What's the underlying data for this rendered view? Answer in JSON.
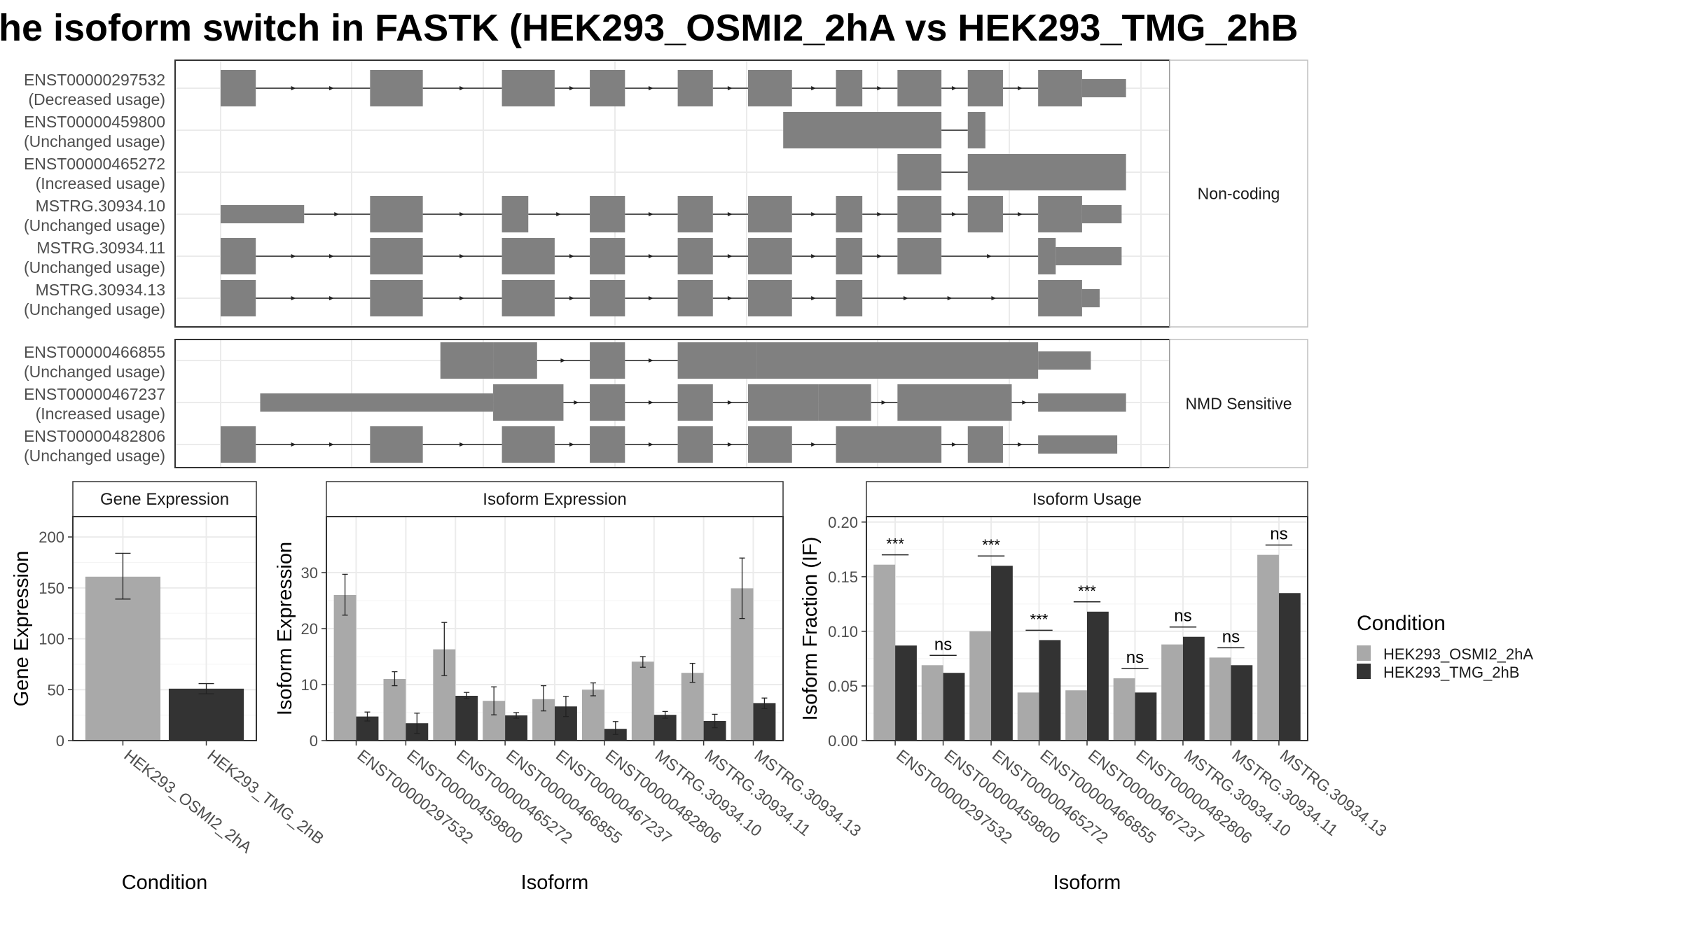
{
  "title": "he isoform switch in FASTK (HEK293_OSMI2_2hA vs HEK293_TMG_2hB",
  "colors": {
    "HEK293_OSMI2_2hA": "#a9a9a9",
    "HEK293_TMG_2hB": "#333333",
    "exon": "#808080",
    "strip": "#ffffff",
    "grid": "#ebebeb",
    "border": "#333333"
  },
  "structure_panels": [
    {
      "label": "Non-coding",
      "transcripts": [
        {
          "id": "ENST00000297532",
          "usage": "(Decreased usage)",
          "exons": [
            [
              0,
              4
            ],
            [
              17,
              23
            ],
            [
              32,
              38
            ],
            [
              42,
              46
            ],
            [
              52,
              56
            ],
            [
              60,
              65
            ],
            [
              70,
              73
            ],
            [
              77,
              82
            ],
            [
              85,
              89
            ],
            [
              93,
              98,
              "l"
            ],
            [
              98,
              103
            ]
          ]
        },
        {
          "id": "ENST00000459800",
          "usage": "(Unchanged usage)",
          "exons": [
            [
              64,
              82
            ],
            [
              85,
              87
            ]
          ],
          "no_arrows": true
        },
        {
          "id": "ENST00000465272",
          "usage": "(Increased usage)",
          "exons": [
            [
              77,
              82
            ],
            [
              85,
              103
            ]
          ],
          "no_arrows": true
        },
        {
          "id": "MSTRG.30934.10",
          "usage": "(Unchanged usage)",
          "exons": [
            [
              0,
              9.5
            ],
            [
              17,
              23
            ],
            [
              32,
              35
            ],
            [
              42,
              46
            ],
            [
              52,
              56
            ],
            [
              60,
              65
            ],
            [
              70,
              73
            ],
            [
              77,
              82
            ],
            [
              85,
              89
            ],
            [
              93,
              98,
              "l"
            ],
            [
              98,
              102.5
            ]
          ]
        },
        {
          "id": "MSTRG.30934.11",
          "usage": "(Unchanged usage)",
          "exons": [
            [
              0,
              4
            ],
            [
              17,
              23
            ],
            [
              32,
              38
            ],
            [
              42,
              46
            ],
            [
              52,
              56
            ],
            [
              60,
              65
            ],
            [
              70,
              73
            ],
            [
              77,
              82
            ],
            [
              93,
              95,
              "l"
            ],
            [
              95,
              102.5
            ]
          ]
        },
        {
          "id": "MSTRG.30934.13",
          "usage": "(Unchanged usage)",
          "exons": [
            [
              0,
              4
            ],
            [
              17,
              23
            ],
            [
              32,
              38
            ],
            [
              42,
              46
            ],
            [
              52,
              56
            ],
            [
              60,
              65
            ],
            [
              70,
              73
            ],
            [
              93,
              98,
              "l"
            ],
            [
              98,
              100
            ]
          ]
        }
      ]
    },
    {
      "label": "NMD Sensitive",
      "transcripts": [
        {
          "id": "ENST00000466855",
          "usage": "(Unchanged usage)",
          "exons": [
            [
              25,
              31
            ],
            [
              31,
              36,
              "l"
            ],
            [
              42,
              46
            ],
            [
              52,
              61,
              "l"
            ],
            [
              61,
              93
            ],
            [
              93,
              99
            ]
          ],
          "arrows_between": [
            [
              36,
              42
            ],
            [
              46,
              52
            ]
          ]
        },
        {
          "id": "ENST00000467237",
          "usage": "(Increased usage)",
          "exons": [
            [
              4.5,
              31
            ],
            [
              31,
              39,
              "l"
            ],
            [
              42,
              46
            ],
            [
              52,
              56
            ],
            [
              60,
              68,
              "l"
            ],
            [
              68,
              74
            ],
            [
              77,
              90
            ],
            [
              93,
              103
            ]
          ]
        },
        {
          "id": "ENST00000482806",
          "usage": "(Unchanged usage)",
          "exons": [
            [
              0,
              4
            ],
            [
              17,
              23
            ],
            [
              32,
              38
            ],
            [
              42,
              46
            ],
            [
              52,
              56
            ],
            [
              60,
              65
            ],
            [
              70,
              80,
              "l"
            ],
            [
              80,
              82
            ],
            [
              85,
              89
            ],
            [
              93,
              102
            ]
          ]
        }
      ]
    }
  ],
  "chart_data": [
    {
      "type": "bar",
      "strip": "Gene Expression",
      "ylabel": "Gene Expression",
      "xlabel": "Condition",
      "ylim": [
        0,
        220
      ],
      "yticks": [
        "0",
        "50",
        "100",
        "150",
        "200"
      ],
      "categories": [
        "HEK293_OSMI2_2hA",
        "HEK293_TMG_2hB"
      ],
      "values": [
        161,
        51
      ],
      "errors": [
        [
          139,
          184
        ],
        [
          46,
          56
        ]
      ]
    },
    {
      "type": "bar",
      "strip": "Isoform Expression",
      "ylabel": "Isoform Expression",
      "xlabel": "Isoform",
      "ylim": [
        0,
        40
      ],
      "yticks": [
        "0",
        "10",
        "20",
        "30"
      ],
      "categories": [
        "ENST00000297532",
        "ENST00000459800",
        "ENST00000465272",
        "ENST00000466855",
        "ENST00000467237",
        "ENST00000482806",
        "MSTRG.30934.10",
        "MSTRG.30934.11",
        "MSTRG.30934.13"
      ],
      "series": [
        {
          "name": "HEK293_OSMI2_2hA",
          "values": [
            26.0,
            11.0,
            16.3,
            7.1,
            7.4,
            9.1,
            14.1,
            12.1,
            27.2
          ],
          "errors": [
            [
              22.4,
              29.7
            ],
            [
              9.8,
              12.3
            ],
            [
              11.6,
              21.1
            ],
            [
              4.6,
              9.6
            ],
            [
              5.3,
              9.8
            ],
            [
              8.0,
              10.3
            ],
            [
              13.1,
              15.0
            ],
            [
              10.4,
              13.8
            ],
            [
              21.8,
              32.6
            ]
          ]
        },
        {
          "name": "HEK293_TMG_2hB",
          "values": [
            4.3,
            3.1,
            8.0,
            4.5,
            6.1,
            2.1,
            4.6,
            3.5,
            6.7
          ],
          "errors": [
            [
              3.5,
              5.1
            ],
            [
              1.3,
              4.9
            ],
            [
              7.5,
              8.6
            ],
            [
              4.0,
              5.0
            ],
            [
              4.3,
              7.9
            ],
            [
              1.1,
              3.4
            ],
            [
              4.0,
              5.2
            ],
            [
              2.3,
              4.7
            ],
            [
              5.7,
              7.6
            ]
          ]
        }
      ]
    },
    {
      "type": "bar",
      "strip": "Isoform Usage",
      "ylabel": "Isoform Fraction (IF)",
      "xlabel": "Isoform",
      "ylim": [
        0,
        0.205
      ],
      "yticks": [
        "0.00",
        "0.05",
        "0.10",
        "0.15",
        "0.20"
      ],
      "categories": [
        "ENST00000297532",
        "ENST00000459800",
        "ENST00000465272",
        "ENST00000466855",
        "ENST00000467237",
        "ENST00000482806",
        "MSTRG.30934.10",
        "MSTRG.30934.11",
        "MSTRG.30934.13"
      ],
      "series": [
        {
          "name": "HEK293_OSMI2_2hA",
          "values": [
            0.161,
            0.069,
            0.1,
            0.044,
            0.046,
            0.057,
            0.088,
            0.076,
            0.17
          ]
        },
        {
          "name": "HEK293_TMG_2hB",
          "values": [
            0.087,
            0.062,
            0.16,
            0.092,
            0.118,
            0.044,
            0.095,
            0.069,
            0.135
          ]
        }
      ],
      "significance": [
        "***",
        "ns",
        "***",
        "***",
        "***",
        "ns",
        "ns",
        "ns",
        "ns"
      ]
    }
  ],
  "legend": {
    "title": "Condition",
    "items": [
      "HEK293_OSMI2_2hA",
      "HEK293_TMG_2hB"
    ]
  }
}
